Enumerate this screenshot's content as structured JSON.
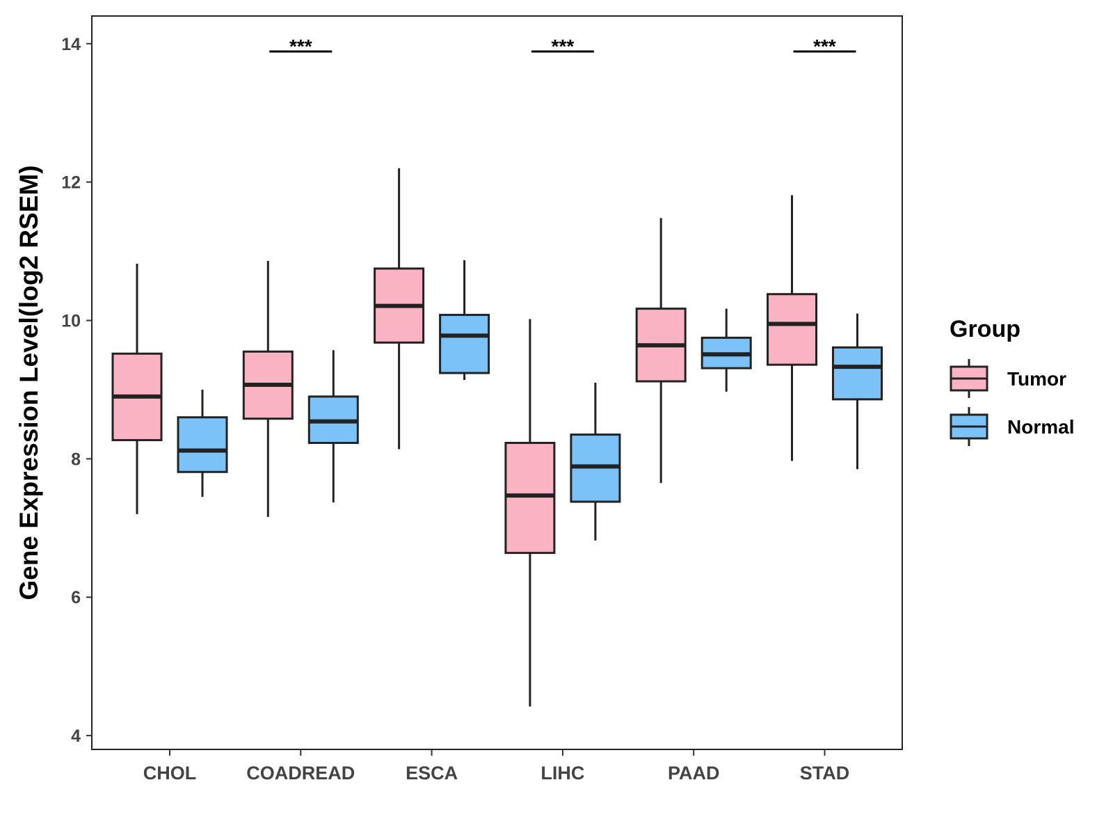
{
  "chart_data": {
    "type": "boxplot",
    "title": "",
    "xlabel": "",
    "ylabel": "Gene Expression Level(log2 RSEM)",
    "ylim": [
      3.8,
      14.4
    ],
    "yticks": [
      4,
      6,
      8,
      10,
      12,
      14
    ],
    "grid": false,
    "legend": {
      "title": "Group",
      "position": "right",
      "entries": [
        "Tumor",
        "Normal"
      ]
    },
    "categories": [
      "CHOL",
      "COADREAD",
      "ESCA",
      "LIHC",
      "PAAD",
      "STAD"
    ],
    "series": [
      {
        "name": "Tumor",
        "color": "#f9b3c3",
        "boxes": [
          {
            "whisker_low": 7.2,
            "q1": 8.27,
            "median": 8.9,
            "q3": 9.52,
            "whisker_high": 10.82
          },
          {
            "whisker_low": 7.16,
            "q1": 8.58,
            "median": 9.07,
            "q3": 9.55,
            "whisker_high": 10.86
          },
          {
            "whisker_low": 8.14,
            "q1": 9.68,
            "median": 10.21,
            "q3": 10.75,
            "whisker_high": 12.2
          },
          {
            "whisker_low": 4.42,
            "q1": 6.64,
            "median": 7.47,
            "q3": 8.23,
            "whisker_high": 10.02
          },
          {
            "whisker_low": 7.65,
            "q1": 9.12,
            "median": 9.64,
            "q3": 10.17,
            "whisker_high": 11.48
          },
          {
            "whisker_low": 7.97,
            "q1": 9.36,
            "median": 9.95,
            "q3": 10.38,
            "whisker_high": 11.81
          }
        ]
      },
      {
        "name": "Normal",
        "color": "#7bc2f8",
        "boxes": [
          {
            "whisker_low": 7.45,
            "q1": 7.81,
            "median": 8.12,
            "q3": 8.6,
            "whisker_high": 9.0
          },
          {
            "whisker_low": 7.37,
            "q1": 8.23,
            "median": 8.54,
            "q3": 8.9,
            "whisker_high": 9.57
          },
          {
            "whisker_low": 9.14,
            "q1": 9.24,
            "median": 9.78,
            "q3": 10.08,
            "whisker_high": 10.87
          },
          {
            "whisker_low": 6.82,
            "q1": 7.38,
            "median": 7.89,
            "q3": 8.35,
            "whisker_high": 9.1
          },
          {
            "whisker_low": 8.97,
            "q1": 9.31,
            "median": 9.51,
            "q3": 9.75,
            "whisker_high": 10.17
          },
          {
            "whisker_low": 7.85,
            "q1": 8.86,
            "median": 9.33,
            "q3": 9.61,
            "whisker_high": 10.1
          }
        ]
      }
    ],
    "annotations": [
      {
        "category": "COADREAD",
        "label": "***"
      },
      {
        "category": "LIHC",
        "label": "***"
      },
      {
        "category": "STAD",
        "label": "***"
      }
    ]
  }
}
